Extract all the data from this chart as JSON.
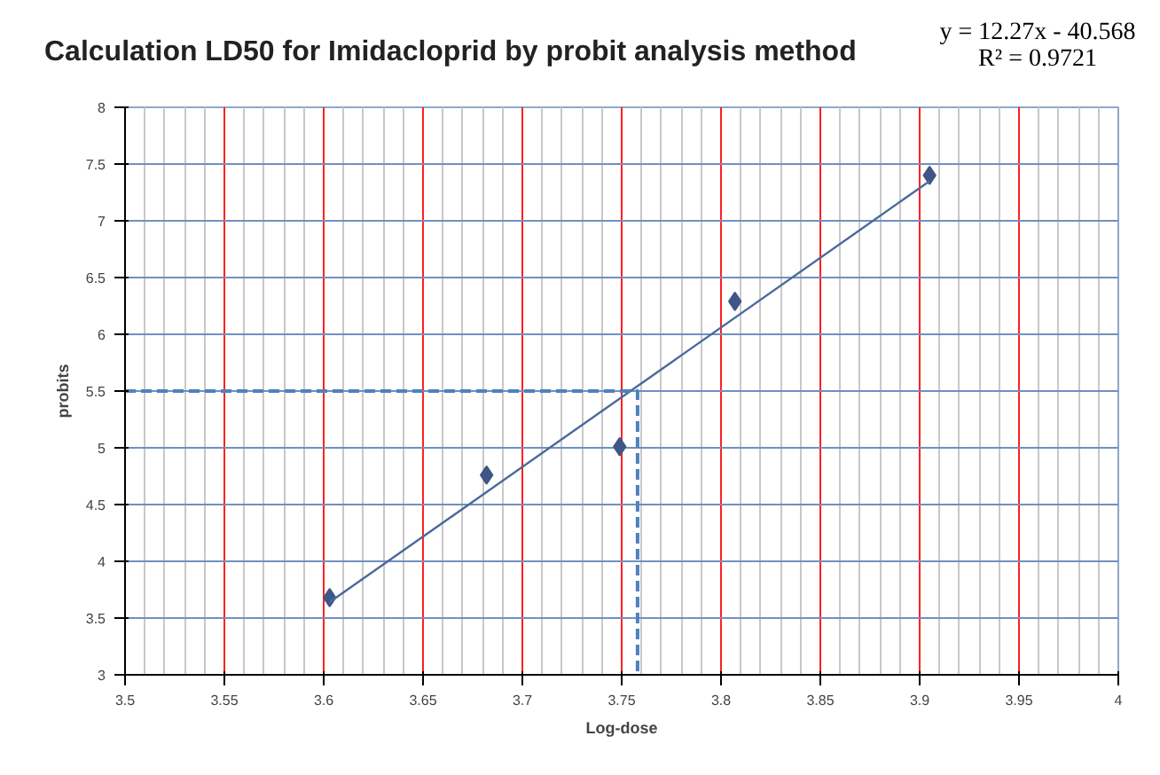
{
  "chart_data": {
    "type": "scatter",
    "title": "Calculation LD50 for Imidacloprid by probit analysis method",
    "xlabel": "Log-dose",
    "ylabel": "probits",
    "annotations": [
      "y = 12.27x - 40.568",
      "R² = 0.9721"
    ],
    "xlim": [
      3.5,
      4
    ],
    "xticks": [
      3.5,
      3.55,
      3.6,
      3.65,
      3.7,
      3.75,
      3.8,
      3.85,
      3.9,
      3.95,
      4
    ],
    "ylim": [
      3,
      8
    ],
    "yticks": [
      3,
      3.5,
      4,
      4.5,
      5,
      5.5,
      6,
      6.5,
      7,
      7.5,
      8
    ],
    "grid": true,
    "series": [
      {
        "marker": "diamond",
        "color": "#3f5687",
        "x": [
          3.603,
          3.682,
          3.749,
          3.807,
          3.905
        ],
        "values": [
          3.68,
          4.76,
          5.01,
          6.29,
          7.4
        ]
      },
      {
        "type": "line",
        "line_style": "solid",
        "marker": "none",
        "color": "#4a6a9a",
        "x": [
          3.603,
          3.905
        ],
        "values": [
          3.64,
          7.35
        ]
      },
      {
        "type": "line",
        "line_style": "dashed",
        "marker": "none",
        "color": "#4f81bd",
        "x": [
          3.5,
          3.758,
          3.758
        ],
        "values": [
          5.5,
          5.5,
          3
        ]
      }
    ]
  }
}
